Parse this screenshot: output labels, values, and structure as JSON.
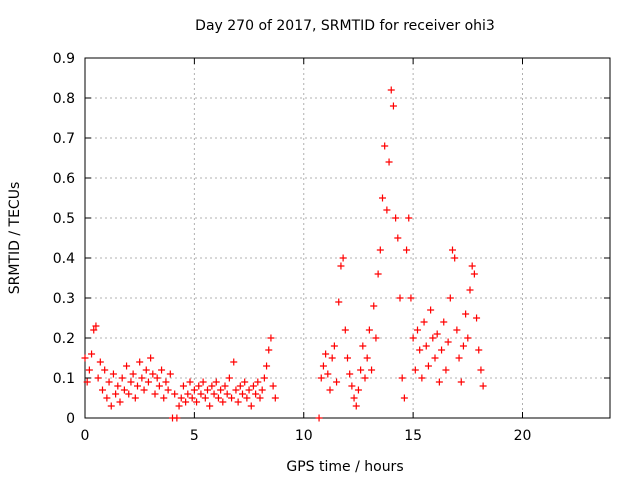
{
  "chart_data": {
    "type": "scatter",
    "title": "Day 270 of 2017, SRMTID for receiver ohi3",
    "xlabel": "GPS time / hours",
    "ylabel": "SRMTID / TECUs",
    "xlim": [
      0,
      24
    ],
    "ylim": [
      0,
      0.9
    ],
    "x_ticks": [
      0,
      5,
      10,
      15,
      20
    ],
    "x_tick_labels": [
      "0",
      "5",
      "10",
      "15",
      "20"
    ],
    "y_ticks": [
      0,
      0.1,
      0.2,
      0.3,
      0.4,
      0.5,
      0.6,
      0.7,
      0.8,
      0.9
    ],
    "y_tick_labels": [
      "0",
      "0.1",
      "0.2",
      "0.3",
      "0.4",
      "0.5",
      "0.6",
      "0.7",
      "0.8",
      "0.9"
    ],
    "grid": true,
    "marker": "plus",
    "marker_color": "#ff0000",
    "series": [
      {
        "name": "SRMTID",
        "points": [
          [
            0.0,
            0.15
          ],
          [
            0.1,
            0.09
          ],
          [
            0.2,
            0.12
          ],
          [
            0.3,
            0.16
          ],
          [
            0.4,
            0.22
          ],
          [
            0.5,
            0.23
          ],
          [
            0.6,
            0.1
          ],
          [
            0.7,
            0.14
          ],
          [
            0.8,
            0.07
          ],
          [
            0.9,
            0.12
          ],
          [
            1.0,
            0.05
          ],
          [
            1.1,
            0.09
          ],
          [
            1.2,
            0.03
          ],
          [
            1.3,
            0.11
          ],
          [
            1.4,
            0.06
          ],
          [
            1.5,
            0.08
          ],
          [
            1.6,
            0.04
          ],
          [
            1.7,
            0.1
          ],
          [
            1.8,
            0.07
          ],
          [
            1.9,
            0.13
          ],
          [
            2.0,
            0.06
          ],
          [
            2.1,
            0.09
          ],
          [
            2.2,
            0.11
          ],
          [
            2.3,
            0.05
          ],
          [
            2.4,
            0.08
          ],
          [
            2.5,
            0.14
          ],
          [
            2.6,
            0.1
          ],
          [
            2.7,
            0.07
          ],
          [
            2.8,
            0.12
          ],
          [
            2.9,
            0.09
          ],
          [
            3.0,
            0.15
          ],
          [
            3.1,
            0.11
          ],
          [
            3.2,
            0.06
          ],
          [
            3.3,
            0.1
          ],
          [
            3.4,
            0.08
          ],
          [
            3.5,
            0.12
          ],
          [
            3.6,
            0.05
          ],
          [
            3.7,
            0.09
          ],
          [
            3.8,
            0.07
          ],
          [
            3.9,
            0.11
          ],
          [
            4.0,
            0.0
          ],
          [
            4.2,
            0.0
          ],
          [
            4.1,
            0.06
          ],
          [
            4.3,
            0.03
          ],
          [
            4.4,
            0.05
          ],
          [
            4.5,
            0.08
          ],
          [
            4.6,
            0.04
          ],
          [
            4.7,
            0.06
          ],
          [
            4.8,
            0.09
          ],
          [
            4.9,
            0.05
          ],
          [
            5.0,
            0.07
          ],
          [
            5.1,
            0.04
          ],
          [
            5.2,
            0.08
          ],
          [
            5.3,
            0.06
          ],
          [
            5.4,
            0.09
          ],
          [
            5.5,
            0.05
          ],
          [
            5.6,
            0.07
          ],
          [
            5.7,
            0.03
          ],
          [
            5.8,
            0.08
          ],
          [
            5.9,
            0.06
          ],
          [
            6.0,
            0.09
          ],
          [
            6.1,
            0.05
          ],
          [
            6.2,
            0.07
          ],
          [
            6.3,
            0.04
          ],
          [
            6.4,
            0.08
          ],
          [
            6.5,
            0.06
          ],
          [
            6.6,
            0.1
          ],
          [
            6.7,
            0.05
          ],
          [
            6.8,
            0.14
          ],
          [
            6.9,
            0.07
          ],
          [
            7.0,
            0.04
          ],
          [
            7.1,
            0.08
          ],
          [
            7.2,
            0.06
          ],
          [
            7.3,
            0.09
          ],
          [
            7.4,
            0.05
          ],
          [
            7.5,
            0.07
          ],
          [
            7.6,
            0.03
          ],
          [
            7.7,
            0.08
          ],
          [
            7.8,
            0.06
          ],
          [
            7.9,
            0.09
          ],
          [
            8.0,
            0.05
          ],
          [
            8.1,
            0.07
          ],
          [
            8.2,
            0.1
          ],
          [
            8.3,
            0.13
          ],
          [
            8.4,
            0.17
          ],
          [
            8.5,
            0.2
          ],
          [
            8.6,
            0.08
          ],
          [
            8.7,
            0.05
          ],
          [
            10.7,
            0.0
          ],
          [
            10.8,
            0.1
          ],
          [
            10.9,
            0.13
          ],
          [
            11.0,
            0.16
          ],
          [
            11.1,
            0.11
          ],
          [
            11.2,
            0.07
          ],
          [
            11.3,
            0.15
          ],
          [
            11.4,
            0.18
          ],
          [
            11.5,
            0.09
          ],
          [
            11.6,
            0.29
          ],
          [
            11.7,
            0.38
          ],
          [
            11.8,
            0.4
          ],
          [
            11.9,
            0.22
          ],
          [
            12.0,
            0.15
          ],
          [
            12.1,
            0.11
          ],
          [
            12.2,
            0.08
          ],
          [
            12.3,
            0.05
          ],
          [
            12.4,
            0.03
          ],
          [
            12.5,
            0.07
          ],
          [
            12.6,
            0.12
          ],
          [
            12.7,
            0.18
          ],
          [
            12.8,
            0.1
          ],
          [
            12.9,
            0.15
          ],
          [
            13.0,
            0.22
          ],
          [
            13.1,
            0.12
          ],
          [
            13.2,
            0.28
          ],
          [
            13.3,
            0.2
          ],
          [
            13.4,
            0.36
          ],
          [
            13.5,
            0.42
          ],
          [
            13.6,
            0.55
          ],
          [
            13.7,
            0.68
          ],
          [
            13.8,
            0.52
          ],
          [
            13.9,
            0.64
          ],
          [
            14.0,
            0.82
          ],
          [
            14.1,
            0.78
          ],
          [
            14.2,
            0.5
          ],
          [
            14.3,
            0.45
          ],
          [
            14.4,
            0.3
          ],
          [
            14.5,
            0.1
          ],
          [
            14.6,
            0.05
          ],
          [
            14.7,
            0.42
          ],
          [
            14.8,
            0.5
          ],
          [
            14.9,
            0.3
          ],
          [
            15.0,
            0.2
          ],
          [
            15.1,
            0.12
          ],
          [
            15.2,
            0.22
          ],
          [
            15.3,
            0.17
          ],
          [
            15.4,
            0.1
          ],
          [
            15.5,
            0.24
          ],
          [
            15.6,
            0.18
          ],
          [
            15.7,
            0.13
          ],
          [
            15.8,
            0.27
          ],
          [
            15.9,
            0.2
          ],
          [
            16.0,
            0.15
          ],
          [
            16.1,
            0.21
          ],
          [
            16.2,
            0.09
          ],
          [
            16.3,
            0.17
          ],
          [
            16.4,
            0.24
          ],
          [
            16.5,
            0.12
          ],
          [
            16.6,
            0.19
          ],
          [
            16.7,
            0.3
          ],
          [
            16.8,
            0.42
          ],
          [
            16.9,
            0.4
          ],
          [
            17.0,
            0.22
          ],
          [
            17.1,
            0.15
          ],
          [
            17.2,
            0.09
          ],
          [
            17.3,
            0.18
          ],
          [
            17.4,
            0.26
          ],
          [
            17.5,
            0.2
          ],
          [
            17.6,
            0.32
          ],
          [
            17.7,
            0.38
          ],
          [
            17.8,
            0.36
          ],
          [
            17.9,
            0.25
          ],
          [
            18.0,
            0.17
          ],
          [
            18.1,
            0.12
          ],
          [
            18.2,
            0.08
          ]
        ]
      }
    ]
  }
}
